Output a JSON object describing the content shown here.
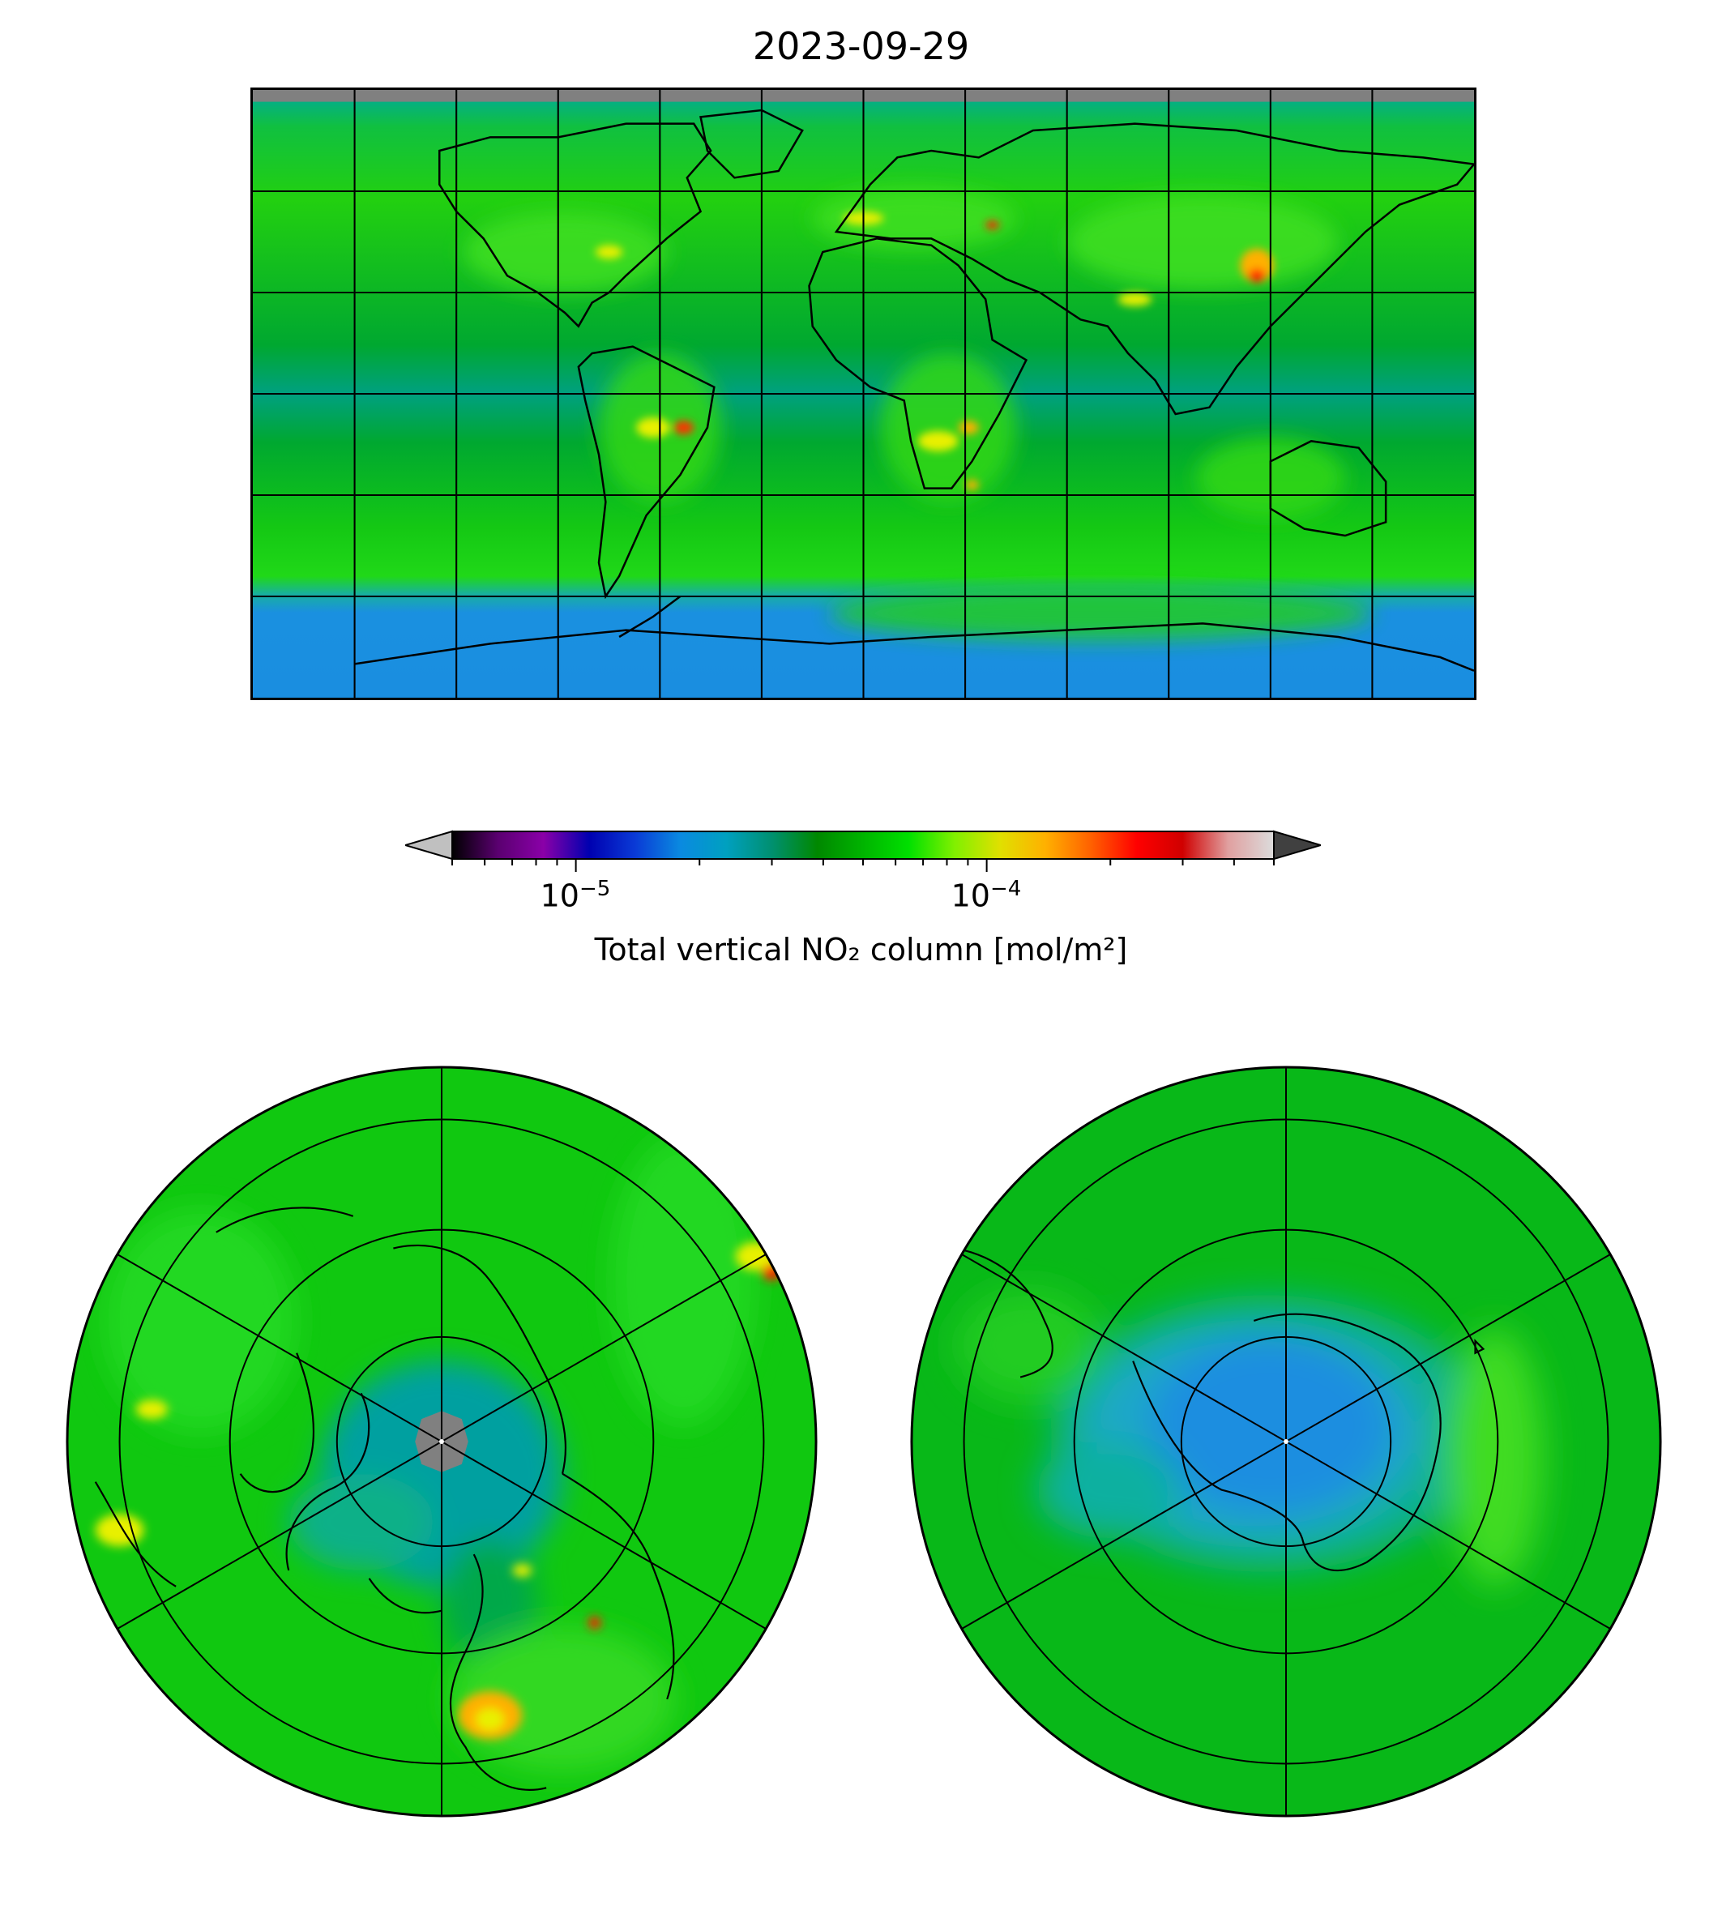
{
  "title": "2023-09-29",
  "colorbar": {
    "label": "Total vertical NO₂ column [mol/m²]",
    "scale": "log",
    "range": [
      5e-06,
      0.0005
    ],
    "major_ticks": [
      {
        "value": 1e-05,
        "base": "10",
        "exponent": "−5"
      },
      {
        "value": 0.0001,
        "base": "10",
        "exponent": "−4"
      }
    ],
    "colors": [
      "#000000",
      "#5a0070",
      "#8a00a8",
      "#0000b0",
      "#0a3ad6",
      "#0a8ae0",
      "#00a0c0",
      "#009070",
      "#008800",
      "#00b400",
      "#00e000",
      "#80f000",
      "#e0e000",
      "#ffb000",
      "#ff6000",
      "#ff0000",
      "#d00000",
      "#e0a0a0",
      "#dcdcdc"
    ],
    "under_color": "#c0c0c0",
    "over_color": "#404040"
  },
  "maps": [
    {
      "name": "global-map",
      "projection": "PlateCarree"
    },
    {
      "name": "north-polar-map",
      "projection": "NorthPolarStereo"
    },
    {
      "name": "south-polar-map",
      "projection": "SouthPolarStereo"
    }
  ],
  "colors": {
    "background_green": "#00b400",
    "bright_green": "#22dd11",
    "dark_green": "#009a1a",
    "teal": "#00a0a0",
    "blue": "#1a8ee0",
    "grey_nodata": "#808080",
    "hotspot_yellow": "#e8f000",
    "hotspot_orange": "#ffb000",
    "hotspot_red": "#ff2000"
  }
}
